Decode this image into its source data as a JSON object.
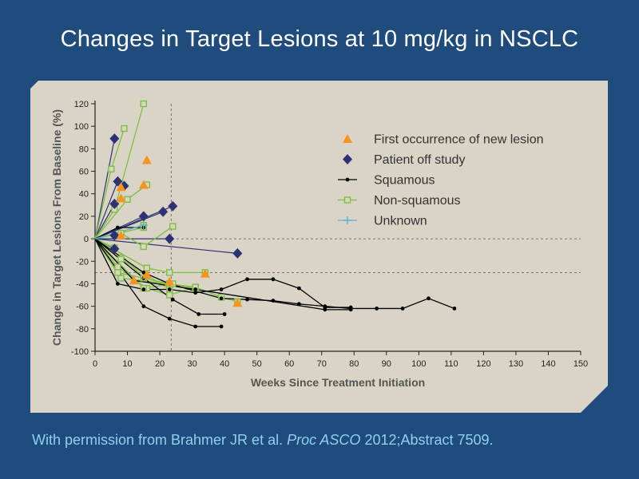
{
  "slide": {
    "title": "Changes in Target Lesions at 10 mg/kg in NSCLC",
    "citation": {
      "prefix": "With permission from Brahmer JR et al. ",
      "journal": "Proc ASCO",
      "suffix": " 2012;Abstract 7509."
    }
  },
  "colors": {
    "slide_background": "#1f4c7d",
    "plot_background": "#d9d4c6",
    "squamous": "#000000",
    "non_squamous": "#7fbf3f",
    "unknown": "#5ab4e0",
    "new_lesion_marker": "#f7931e",
    "off_study_marker": "#2e3274"
  },
  "chart_data": {
    "type": "line",
    "xlabel": "Weeks Since Treatment Initiation",
    "ylabel": "Change in Target Lesions From Baseline (%)",
    "xlim": [
      0,
      150
    ],
    "ylim": [
      -100,
      120
    ],
    "xticks": [
      0,
      10,
      20,
      30,
      40,
      50,
      60,
      70,
      80,
      90,
      100,
      110,
      120,
      130,
      140,
      150
    ],
    "yticks": [
      -100,
      -80,
      -60,
      -40,
      -20,
      0,
      20,
      40,
      60,
      80,
      100,
      120
    ],
    "reference_lines": {
      "horizontal": [
        0,
        -30
      ],
      "vertical": [
        23.5
      ],
      "style": "dashed"
    },
    "legend": {
      "placement": "top-right",
      "entries": [
        {
          "label": "First occurrence of new lesion",
          "symbol": "triangle"
        },
        {
          "label": "Patient off study",
          "symbol": "diamond"
        },
        {
          "label": "Squamous",
          "symbol": "line-dot"
        },
        {
          "label": "Non-squamous",
          "symbol": "line-square"
        },
        {
          "label": "Unknown",
          "symbol": "line-plus"
        }
      ]
    },
    "series": [
      {
        "group": "Non-squamous",
        "points": [
          [
            0,
            0
          ],
          [
            5,
            62
          ],
          [
            9,
            98
          ]
        ]
      },
      {
        "group": "Non-squamous",
        "points": [
          [
            0,
            0
          ],
          [
            6,
            26
          ],
          [
            15,
            120
          ]
        ]
      },
      {
        "group": "Non-squamous",
        "points": [
          [
            0,
            0
          ],
          [
            10,
            35
          ],
          [
            16,
            48
          ]
        ]
      },
      {
        "group": "Non-squamous",
        "points": [
          [
            0,
            0
          ],
          [
            8,
            5
          ],
          [
            15,
            -7
          ],
          [
            24,
            11
          ]
        ]
      },
      {
        "group": "Non-squamous",
        "points": [
          [
            0,
            0
          ],
          [
            15,
            12
          ]
        ]
      },
      {
        "group": "Non-squamous",
        "points": [
          [
            0,
            0
          ],
          [
            15,
            10
          ]
        ]
      },
      {
        "group": "Non-squamous",
        "points": [
          [
            0,
            0
          ],
          [
            16,
            -26
          ],
          [
            23,
            -30
          ],
          [
            34,
            -30
          ]
        ]
      },
      {
        "group": "Non-squamous",
        "points": [
          [
            0,
            0
          ],
          [
            7,
            -25
          ],
          [
            16,
            -44
          ],
          [
            23,
            -50
          ],
          [
            31,
            -43
          ]
        ]
      },
      {
        "group": "Non-squamous",
        "points": [
          [
            0,
            0
          ],
          [
            7,
            -30
          ],
          [
            23,
            -40
          ],
          [
            31,
            -44
          ]
        ]
      },
      {
        "group": "Non-squamous",
        "points": [
          [
            0,
            0
          ],
          [
            8,
            -18
          ],
          [
            23,
            -45
          ]
        ]
      },
      {
        "group": "Non-squamous",
        "points": [
          [
            0,
            0
          ],
          [
            15,
            -44
          ],
          [
            24,
            -40
          ]
        ]
      },
      {
        "group": "Non-squamous",
        "points": [
          [
            0,
            0
          ],
          [
            8,
            -35
          ],
          [
            31,
            -43
          ],
          [
            39,
            -52
          ],
          [
            44,
            -56
          ]
        ]
      },
      {
        "group": "Non-squamous",
        "points": [
          [
            0,
            0
          ],
          [
            6,
            -8
          ],
          [
            15,
            -35
          ]
        ]
      },
      {
        "group": "Squamous",
        "points": [
          [
            0,
            0
          ],
          [
            7,
            -40
          ],
          [
            15,
            -45
          ],
          [
            23,
            -45
          ],
          [
            31,
            -48
          ],
          [
            39,
            -45
          ],
          [
            47,
            -36
          ],
          [
            55,
            -36
          ],
          [
            63,
            -44
          ],
          [
            71,
            -61
          ],
          [
            79,
            -61
          ]
        ]
      },
      {
        "group": "Squamous",
        "points": [
          [
            0,
            0
          ],
          [
            15,
            -30
          ],
          [
            23,
            -40
          ],
          [
            39,
            -53
          ],
          [
            47,
            -54
          ],
          [
            55,
            -55
          ],
          [
            63,
            -58
          ],
          [
            71,
            -60
          ],
          [
            79,
            -62
          ],
          [
            87,
            -62
          ],
          [
            95,
            -62
          ],
          [
            103,
            -53
          ],
          [
            111,
            -62
          ]
        ]
      },
      {
        "group": "Squamous",
        "points": [
          [
            0,
            0
          ],
          [
            15,
            -35
          ],
          [
            24,
            -54
          ],
          [
            32,
            -67
          ],
          [
            40,
            -67
          ]
        ]
      },
      {
        "group": "Squamous",
        "points": [
          [
            0,
            0
          ],
          [
            15,
            -60
          ],
          [
            23,
            -71
          ],
          [
            31,
            -78
          ],
          [
            39,
            -78
          ]
        ]
      },
      {
        "group": "Squamous",
        "points": [
          [
            0,
            0
          ],
          [
            12,
            -37
          ],
          [
            31,
            -45
          ],
          [
            71,
            -63
          ],
          [
            79,
            -63
          ]
        ]
      },
      {
        "group": "Squamous",
        "points": [
          [
            0,
            0
          ],
          [
            7,
            10
          ],
          [
            15,
            10
          ]
        ]
      },
      {
        "group": "Unknown",
        "points": [
          [
            0,
            0
          ],
          [
            15,
            12
          ]
        ]
      }
    ],
    "offstudy_lines": [
      {
        "points": [
          [
            0,
            0
          ],
          [
            6,
            89
          ]
        ]
      },
      {
        "points": [
          [
            0,
            0
          ],
          [
            7,
            51
          ],
          [
            9,
            47
          ]
        ]
      },
      {
        "points": [
          [
            0,
            0
          ],
          [
            6,
            31
          ]
        ]
      },
      {
        "points": [
          [
            0,
            0
          ],
          [
            15,
            20
          ]
        ]
      },
      {
        "points": [
          [
            0,
            0
          ],
          [
            21,
            24
          ]
        ]
      },
      {
        "points": [
          [
            0,
            0
          ],
          [
            23,
            0
          ]
        ]
      },
      {
        "points": [
          [
            0,
            0
          ],
          [
            24,
            29
          ]
        ]
      },
      {
        "points": [
          [
            0,
            0
          ],
          [
            6,
            -9
          ]
        ]
      },
      {
        "points": [
          [
            0,
            0
          ],
          [
            44,
            -13
          ]
        ]
      }
    ],
    "new_lesion_points": [
      [
        8,
        46
      ],
      [
        8,
        36
      ],
      [
        16,
        70
      ],
      [
        15,
        48
      ],
      [
        8,
        3
      ],
      [
        12,
        -37
      ],
      [
        16,
        -32
      ],
      [
        34,
        -31
      ],
      [
        44,
        -57
      ],
      [
        23,
        -38
      ]
    ],
    "off_study_points": [
      [
        6,
        89
      ],
      [
        7,
        51
      ],
      [
        9,
        47
      ],
      [
        6,
        31
      ],
      [
        6,
        -9
      ],
      [
        6,
        3
      ],
      [
        15,
        20
      ],
      [
        21,
        24
      ],
      [
        24,
        29
      ],
      [
        23,
        0
      ],
      [
        44,
        -13
      ]
    ]
  }
}
